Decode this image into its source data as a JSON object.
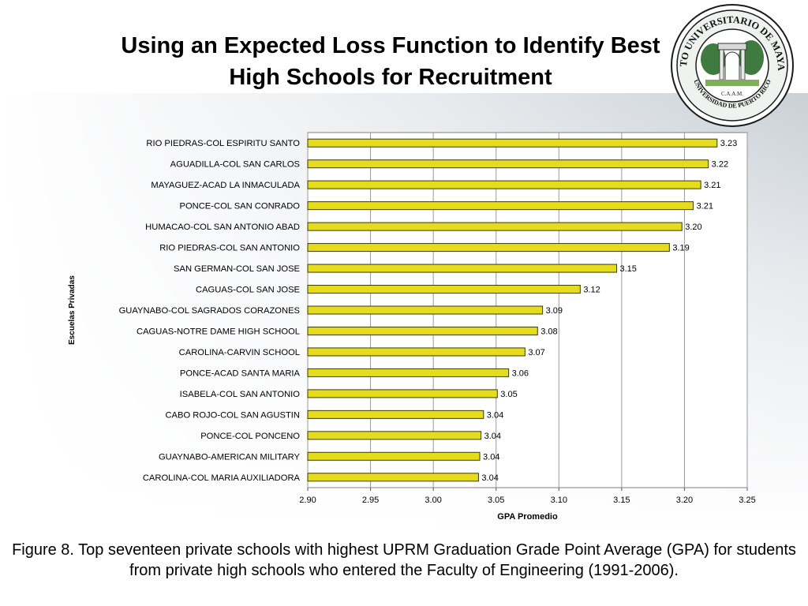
{
  "slide": {
    "title_line1": "Using an Expected Loss Function to Identify Best",
    "title_line2": "High Schools for Recruitment",
    "caption": "Figure 8. Top seventeen private schools with highest UPRM Graduation Grade Point Average (GPA) for students from private high schools who entered the Faculty of Engineering (1991-2006).",
    "logo": {
      "ring_top": "RECINTO UNIVERSITARIO DE MAYAGUEZ",
      "ring_bottom": "UNIVERSIDAD DE PUERTO RICO",
      "monogram": "C.A.A.M.",
      "icon": "university-seal-icon"
    }
  },
  "chart_data": {
    "type": "bar",
    "orientation": "horizontal",
    "categories": [
      "RIO PIEDRAS-COL ESPIRITU SANTO",
      "AGUADILLA-COL SAN CARLOS",
      "MAYAGUEZ-ACAD LA INMACULADA",
      "PONCE-COL SAN CONRADO",
      "HUMACAO-COL SAN ANTONIO ABAD",
      "RIO PIEDRAS-COL SAN ANTONIO",
      "SAN GERMAN-COL SAN JOSE",
      "CAGUAS-COL SAN JOSE",
      "GUAYNABO-COL SAGRADOS CORAZONES",
      "CAGUAS-NOTRE DAME HIGH SCHOOL",
      "CAROLINA-CARVIN SCHOOL",
      "PONCE-ACAD SANTA MARIA",
      "ISABELA-COL SAN ANTONIO",
      "CABO ROJO-COL SAN AGUSTIN",
      "PONCE-COL PONCENO",
      "GUAYNABO-AMERICAN MILITARY",
      "CAROLINA-COL MARIA AUXILIADORA"
    ],
    "values": [
      3.226,
      3.219,
      3.213,
      3.207,
      3.198,
      3.188,
      3.146,
      3.117,
      3.087,
      3.083,
      3.073,
      3.06,
      3.051,
      3.04,
      3.038,
      3.037,
      3.036
    ],
    "data_labels": [
      "3.23",
      "3.22",
      "3.21",
      "3.21",
      "3.20",
      "3.19",
      "3.15",
      "3.12",
      "3.09",
      "3.08",
      "3.07",
      "3.06",
      "3.05",
      "3.04",
      "3.04",
      "3.04",
      "3.04"
    ],
    "xlabel": "GPA Promedio",
    "ylabel": "Escuelas Privadas",
    "xlim": [
      2.9,
      3.25
    ],
    "xticks": [
      "2.90",
      "2.95",
      "3.00",
      "3.05",
      "3.10",
      "3.15",
      "3.20",
      "3.25"
    ],
    "grid": "vertical",
    "bar_color": "#e6dc1e",
    "bar_edge_color": "#3a3a00",
    "plot_background": "#ffffff"
  }
}
